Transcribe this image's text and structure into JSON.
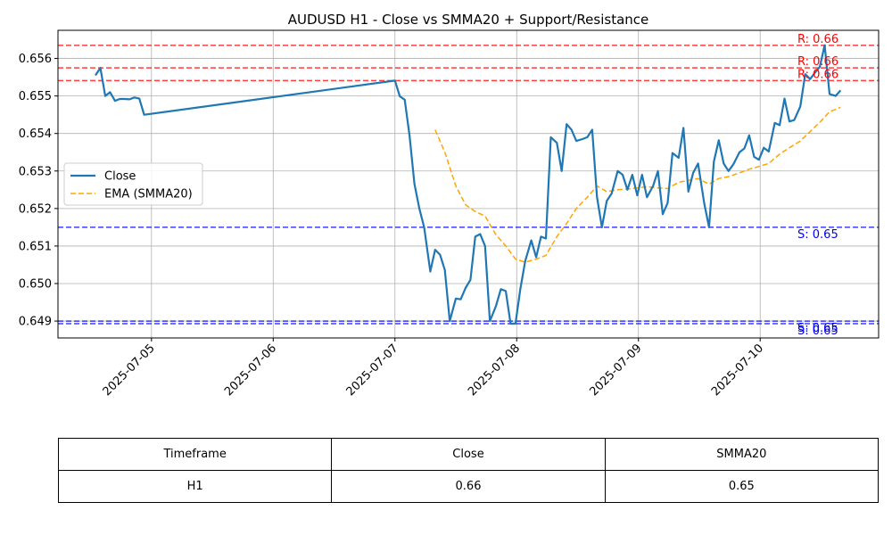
{
  "chart_data": {
    "type": "line",
    "title": "AUDUSD H1 - Close vs SMMA20 + Support/Resistance",
    "xlabel": "",
    "ylabel": "",
    "x_tick_labels": [
      "2025-07-05",
      "2025-07-06",
      "2025-07-07",
      "2025-07-08",
      "2025-07-09",
      "2025-07-10"
    ],
    "y_tick_labels": [
      "0.649",
      "0.650",
      "0.651",
      "0.652",
      "0.653",
      "0.654",
      "0.655",
      "0.656"
    ],
    "x_range_days": [
      4.232,
      10.973
    ],
    "ylim": [
      0.64855,
      0.65675
    ],
    "grid": true,
    "legend_position": "center-left",
    "series": [
      {
        "name": "Close",
        "color": "#1f77b4",
        "style": "solid",
        "points": [
          [
            4.54,
            0.65555
          ],
          [
            4.58,
            0.65575
          ],
          [
            4.62,
            0.655
          ],
          [
            4.66,
            0.6551
          ],
          [
            4.7,
            0.65487
          ],
          [
            4.74,
            0.65492
          ],
          [
            4.78,
            0.65492
          ],
          [
            4.82,
            0.65491
          ],
          [
            4.86,
            0.65496
          ],
          [
            4.9,
            0.65493
          ],
          [
            4.94,
            0.6545
          ],
          [
            7.0,
            0.65541
          ],
          [
            7.04,
            0.65499
          ],
          [
            7.08,
            0.6549
          ],
          [
            7.12,
            0.65395
          ],
          [
            7.16,
            0.65266
          ],
          [
            7.2,
            0.652
          ],
          [
            7.24,
            0.6515
          ],
          [
            7.29,
            0.65032
          ],
          [
            7.33,
            0.6509
          ],
          [
            7.37,
            0.65077
          ],
          [
            7.41,
            0.65036
          ],
          [
            7.45,
            0.649
          ],
          [
            7.5,
            0.6496
          ],
          [
            7.54,
            0.64958
          ],
          [
            7.58,
            0.64988
          ],
          [
            7.62,
            0.6501
          ],
          [
            7.66,
            0.65125
          ],
          [
            7.7,
            0.65132
          ],
          [
            7.74,
            0.651
          ],
          [
            7.78,
            0.649
          ],
          [
            7.83,
            0.6494
          ],
          [
            7.87,
            0.64985
          ],
          [
            7.91,
            0.6498
          ],
          [
            7.95,
            0.64893
          ],
          [
            7.99,
            0.64893
          ],
          [
            8.03,
            0.64985
          ],
          [
            8.07,
            0.6506
          ],
          [
            8.12,
            0.65115
          ],
          [
            8.16,
            0.6507
          ],
          [
            8.2,
            0.65125
          ],
          [
            8.24,
            0.6512
          ],
          [
            8.28,
            0.6539
          ],
          [
            8.33,
            0.65375
          ],
          [
            8.37,
            0.653
          ],
          [
            8.41,
            0.65425
          ],
          [
            8.45,
            0.6541
          ],
          [
            8.49,
            0.6538
          ],
          [
            8.54,
            0.65385
          ],
          [
            8.58,
            0.6539
          ],
          [
            8.62,
            0.6541
          ],
          [
            8.66,
            0.6523
          ],
          [
            8.7,
            0.6515
          ],
          [
            8.74,
            0.6522
          ],
          [
            8.78,
            0.6524
          ],
          [
            8.83,
            0.653
          ],
          [
            8.87,
            0.6529
          ],
          [
            8.91,
            0.6525
          ],
          [
            8.95,
            0.6529
          ],
          [
            8.99,
            0.65235
          ],
          [
            9.03,
            0.6529
          ],
          [
            9.07,
            0.6523
          ],
          [
            9.12,
            0.6526
          ],
          [
            9.16,
            0.653
          ],
          [
            9.2,
            0.65185
          ],
          [
            9.24,
            0.65215
          ],
          [
            9.28,
            0.65348
          ],
          [
            9.33,
            0.65335
          ],
          [
            9.37,
            0.65415
          ],
          [
            9.41,
            0.65245
          ],
          [
            9.45,
            0.65295
          ],
          [
            9.49,
            0.6532
          ],
          [
            9.54,
            0.65215
          ],
          [
            9.58,
            0.6515
          ],
          [
            9.62,
            0.65325
          ],
          [
            9.66,
            0.65382
          ],
          [
            9.7,
            0.6532
          ],
          [
            9.74,
            0.653
          ],
          [
            9.78,
            0.65318
          ],
          [
            9.83,
            0.6535
          ],
          [
            9.87,
            0.6536
          ],
          [
            9.91,
            0.65395
          ],
          [
            9.95,
            0.65338
          ],
          [
            9.99,
            0.6533
          ],
          [
            10.03,
            0.65362
          ],
          [
            10.07,
            0.65352
          ],
          [
            10.12,
            0.65428
          ],
          [
            10.16,
            0.65422
          ],
          [
            10.2,
            0.65493
          ],
          [
            10.24,
            0.65432
          ],
          [
            10.28,
            0.65436
          ],
          [
            10.33,
            0.65472
          ],
          [
            10.37,
            0.65558
          ],
          [
            10.41,
            0.65545
          ],
          [
            10.45,
            0.65562
          ],
          [
            10.49,
            0.65578
          ],
          [
            10.53,
            0.65635
          ],
          [
            10.57,
            0.65505
          ],
          [
            10.62,
            0.655
          ],
          [
            10.66,
            0.65515
          ]
        ]
      },
      {
        "name": "EMA (SMMA20)",
        "color": "#ffa500",
        "style": "dashed",
        "points": [
          [
            7.33,
            0.6541
          ],
          [
            7.41,
            0.6535
          ],
          [
            7.5,
            0.6526
          ],
          [
            7.58,
            0.6521
          ],
          [
            7.66,
            0.65192
          ],
          [
            7.74,
            0.6518
          ],
          [
            7.83,
            0.6513
          ],
          [
            7.91,
            0.651
          ],
          [
            7.99,
            0.65065
          ],
          [
            8.07,
            0.65057
          ],
          [
            8.16,
            0.65065
          ],
          [
            8.24,
            0.65075
          ],
          [
            8.33,
            0.65125
          ],
          [
            8.41,
            0.6516
          ],
          [
            8.49,
            0.652
          ],
          [
            8.58,
            0.6523
          ],
          [
            8.66,
            0.6526
          ],
          [
            8.74,
            0.65245
          ],
          [
            8.83,
            0.6525
          ],
          [
            8.91,
            0.65252
          ],
          [
            8.99,
            0.65255
          ],
          [
            9.07,
            0.65258
          ],
          [
            9.16,
            0.65255
          ],
          [
            9.24,
            0.65253
          ],
          [
            9.33,
            0.6527
          ],
          [
            9.41,
            0.65275
          ],
          [
            9.49,
            0.6528
          ],
          [
            9.58,
            0.65265
          ],
          [
            9.66,
            0.6528
          ],
          [
            9.74,
            0.65285
          ],
          [
            9.83,
            0.65295
          ],
          [
            9.91,
            0.65305
          ],
          [
            9.99,
            0.65312
          ],
          [
            10.07,
            0.6532
          ],
          [
            10.16,
            0.65345
          ],
          [
            10.24,
            0.65362
          ],
          [
            10.33,
            0.6538
          ],
          [
            10.41,
            0.65405
          ],
          [
            10.49,
            0.6543
          ],
          [
            10.57,
            0.65458
          ],
          [
            10.66,
            0.6547
          ]
        ]
      }
    ],
    "horizontal_lines": [
      {
        "kind": "resistance",
        "value": 0.65635,
        "label": "R: 0.66",
        "color": "#ff0000"
      },
      {
        "kind": "resistance",
        "value": 0.65575,
        "label": "R: 0.66",
        "color": "#ff0000"
      },
      {
        "kind": "resistance",
        "value": 0.65541,
        "label": "R: 0.66",
        "color": "#ff0000"
      },
      {
        "kind": "support",
        "value": 0.6515,
        "label": "S: 0.65",
        "color": "#0000ff"
      },
      {
        "kind": "support",
        "value": 0.649,
        "label": "S: 0.65",
        "color": "#0000ff"
      },
      {
        "kind": "support",
        "value": 0.64893,
        "label": "S: 0.65",
        "color": "#0000ff"
      }
    ]
  },
  "table": {
    "headers": [
      "Timeframe",
      "Close",
      "SMMA20"
    ],
    "row": [
      "H1",
      "0.66",
      "0.65"
    ]
  }
}
